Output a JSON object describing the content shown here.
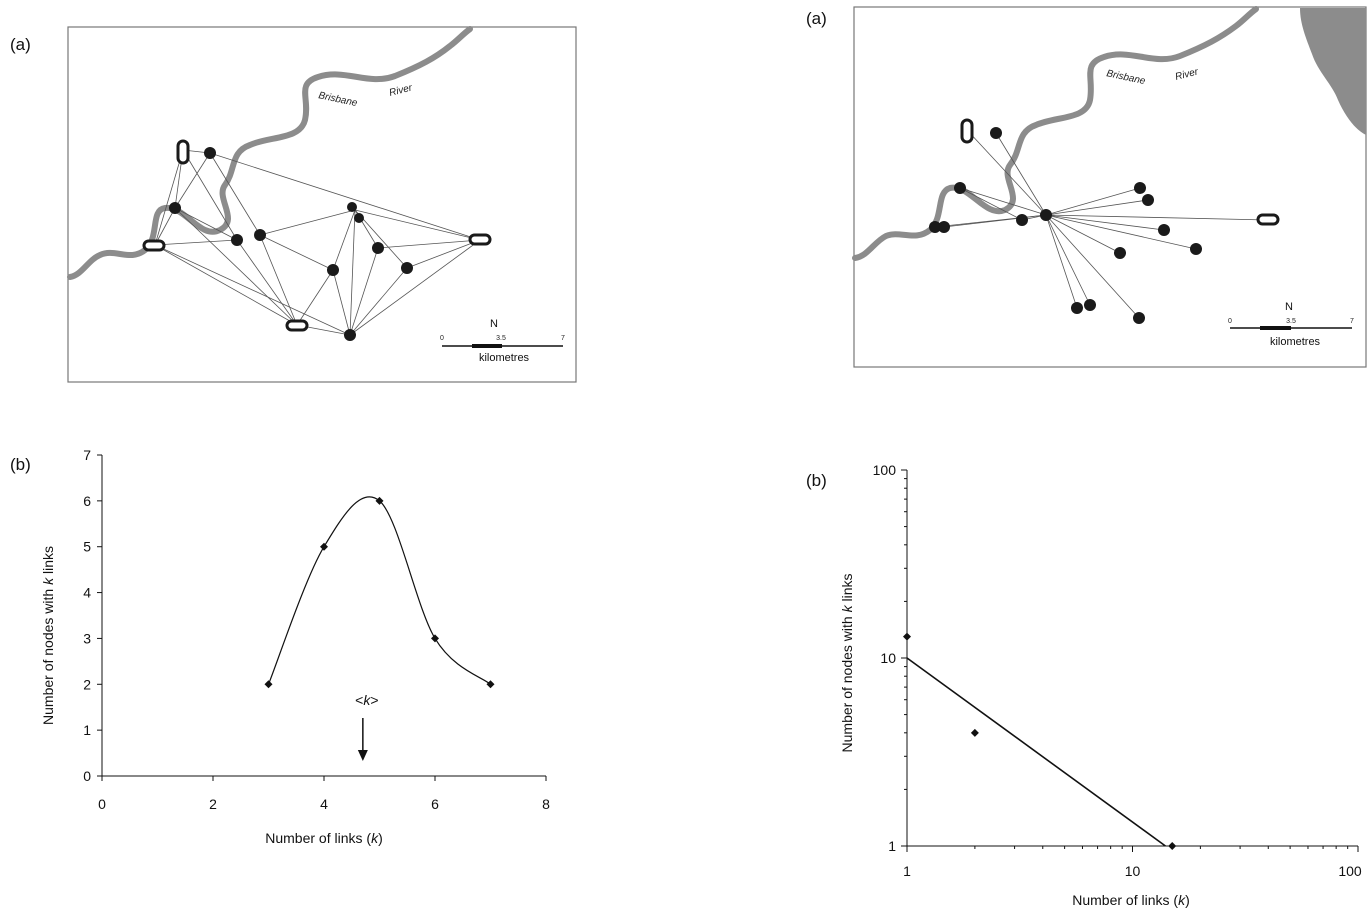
{
  "left": {
    "map_panel_label": "(a)",
    "chart_panel_label": "(b)",
    "river_label_1": "Brisbane",
    "river_label_2": "River",
    "north": "N",
    "scale_ticks": [
      "0",
      "3.5",
      "7"
    ],
    "scale_unit": "kilometres",
    "mean_marker": "<k>"
  },
  "right": {
    "map_panel_label": "(a)",
    "chart_panel_label": "(b)",
    "river_label_1": "Brisbane",
    "river_label_2": "River",
    "north": "N",
    "scale_ticks": [
      "0",
      "3.5",
      "7"
    ],
    "scale_unit": "kilometres"
  },
  "colors": {
    "river": "#8c8c8c",
    "land": "#8c8c8c",
    "node": "#1a1a1a",
    "edge": "#555555"
  },
  "chart_data": [
    {
      "type": "line",
      "title": "",
      "xlabel": "Number of links (k)",
      "ylabel": "Number of nodes with k links",
      "xlim": [
        0,
        8
      ],
      "ylim": [
        0,
        7
      ],
      "x_ticks": [
        0,
        2,
        4,
        6,
        8
      ],
      "y_ticks": [
        0,
        1,
        2,
        3,
        4,
        5,
        6,
        7
      ],
      "grid": false,
      "smoothed": true,
      "series": [
        {
          "x": [
            3,
            4,
            5,
            6,
            7
          ],
          "y": [
            2,
            5,
            6,
            3,
            2
          ]
        }
      ],
      "annotation": {
        "text": "<k>",
        "x": 4.7
      }
    },
    {
      "type": "scatter",
      "title": "",
      "xlabel": "Number of links (k)",
      "ylabel": "Number of nodes with k links",
      "xscale": "log",
      "yscale": "log",
      "xlim": [
        1,
        100
      ],
      "ylim": [
        1,
        100
      ],
      "x_ticks": [
        1,
        10,
        100
      ],
      "y_ticks": [
        1,
        10,
        100
      ],
      "grid": false,
      "series": [
        {
          "x": [
            1,
            2,
            15
          ],
          "y": [
            13,
            4,
            1
          ]
        }
      ],
      "fit_line": {
        "x": [
          1,
          14
        ],
        "y": [
          10,
          1
        ]
      }
    }
  ]
}
